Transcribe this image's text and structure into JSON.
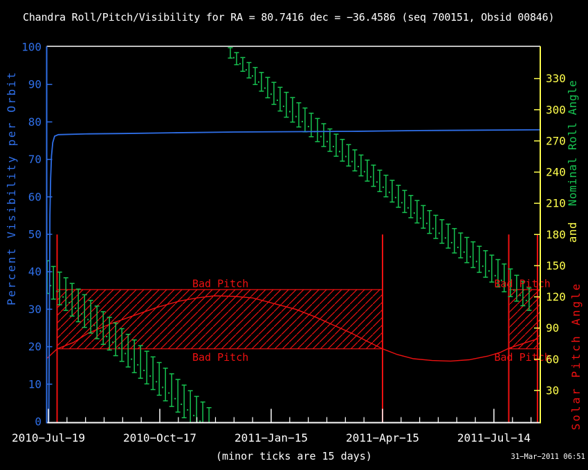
{
  "title": "Chandra Roll/Pitch/Visibility for RA = 80.7416 dec = −36.4586 (seq 700151, Obsid 00846)",
  "footnote": "(minor ticks are 15 days)",
  "timestamp": "31−Mar−2011 06:51",
  "colors": {
    "background": "#000000",
    "frame": "#ffffff",
    "text": "#ffffff",
    "visibility": "#2f6fe8",
    "roll": "#17c351",
    "pitch": "#ee1111",
    "axis_right": "#ffff4d"
  },
  "chart_data": {
    "type": "line",
    "x_axis": {
      "major_tick_days": [
        0,
        90,
        180,
        270,
        360
      ],
      "major_labels": [
        "2010−Jul−19",
        "2010−Oct−17",
        "2011−Jan−15",
        "2011−Apr−15",
        "2011−Jul−14"
      ],
      "minor_interval_days": 15,
      "range_days": [
        -1,
        397
      ]
    },
    "left_axis": {
      "label": "Percent Visibility per Orbit",
      "min": 0,
      "max": 100,
      "tick_interval": 10,
      "ticks": [
        0,
        10,
        20,
        30,
        40,
        50,
        60,
        70,
        80,
        90,
        100
      ]
    },
    "right_axis": {
      "labels": [
        {
          "text": "Nominal Roll Angle",
          "color_key": "roll"
        },
        {
          "text": "and",
          "color_key": "axis_right"
        },
        {
          "text": "Solar Pitch Angle",
          "color_key": "pitch"
        }
      ],
      "min": 0,
      "max": 361,
      "tick_interval": 30,
      "ticks": [
        30,
        60,
        90,
        120,
        150,
        180,
        210,
        240,
        270,
        300,
        330
      ]
    },
    "series": [
      {
        "name": "percent-visibility",
        "axis": "left",
        "color_key": "visibility",
        "points": [
          [
            0.3,
            0
          ],
          [
            0.8,
            30
          ],
          [
            1.2,
            55
          ],
          [
            1.8,
            65
          ],
          [
            2.5,
            71
          ],
          [
            3.5,
            74.5
          ],
          [
            5,
            76.2
          ],
          [
            8,
            76.6
          ],
          [
            30,
            76.8
          ],
          [
            60,
            76.9
          ],
          [
            100,
            77.1
          ],
          [
            150,
            77.3
          ],
          [
            200,
            77.4
          ],
          [
            250,
            77.5
          ],
          [
            300,
            77.7
          ],
          [
            350,
            77.8
          ],
          [
            397,
            77.9
          ]
        ]
      },
      {
        "name": "solar-pitch-angle",
        "axis": "right",
        "color_key": "pitch",
        "points": [
          [
            -1,
            61
          ],
          [
            7,
            70
          ],
          [
            20,
            76
          ],
          [
            32,
            85
          ],
          [
            50,
            94
          ],
          [
            69,
            102
          ],
          [
            88,
            110
          ],
          [
            106,
            116
          ],
          [
            120,
            119
          ],
          [
            134,
            121
          ],
          [
            150,
            120.5
          ],
          [
            165,
            119
          ],
          [
            184,
            113
          ],
          [
            200,
            108
          ],
          [
            215,
            101
          ],
          [
            230,
            93
          ],
          [
            245,
            85
          ],
          [
            258,
            77
          ],
          [
            270,
            70
          ],
          [
            282,
            64.5
          ],
          [
            295,
            60.5
          ],
          [
            310,
            58.8
          ],
          [
            325,
            58.2
          ],
          [
            340,
            59.5
          ],
          [
            355,
            63
          ],
          [
            365,
            66.5
          ],
          [
            372,
            70.5
          ],
          [
            382,
            74.5
          ],
          [
            396,
            80
          ]
        ]
      }
    ],
    "roll_bands": [
      {
        "name": "roll-band-upper",
        "waypoints": [
          [
            147,
            354.7,
            5
          ],
          [
            191,
            306,
            12
          ],
          [
            251,
            248,
            10
          ],
          [
            310,
            190,
            11
          ],
          [
            372,
            135,
            13.5
          ],
          [
            393,
            113,
            10
          ]
        ]
      },
      {
        "name": "roll-band-lower",
        "waypoints": [
          [
            -1,
            139,
            15.7
          ],
          [
            60,
            73,
            15.7
          ],
          [
            130,
            -2.5,
            15.7
          ]
        ]
      }
    ],
    "bad_pitch": {
      "label": "Bad Pitch",
      "low_deg": 70,
      "high_deg": 127,
      "segments": [
        [
          7,
          270
        ],
        [
          372,
          397
        ]
      ],
      "labels": [
        {
          "day": 139,
          "deg": 133
        },
        {
          "day": 139,
          "deg": 62
        },
        {
          "day": 383,
          "deg": 133
        },
        {
          "day": 383,
          "deg": 62
        }
      ],
      "event_line_days": [
        7,
        270,
        372,
        395.2
      ],
      "event_line_top_deg": 180
    }
  }
}
